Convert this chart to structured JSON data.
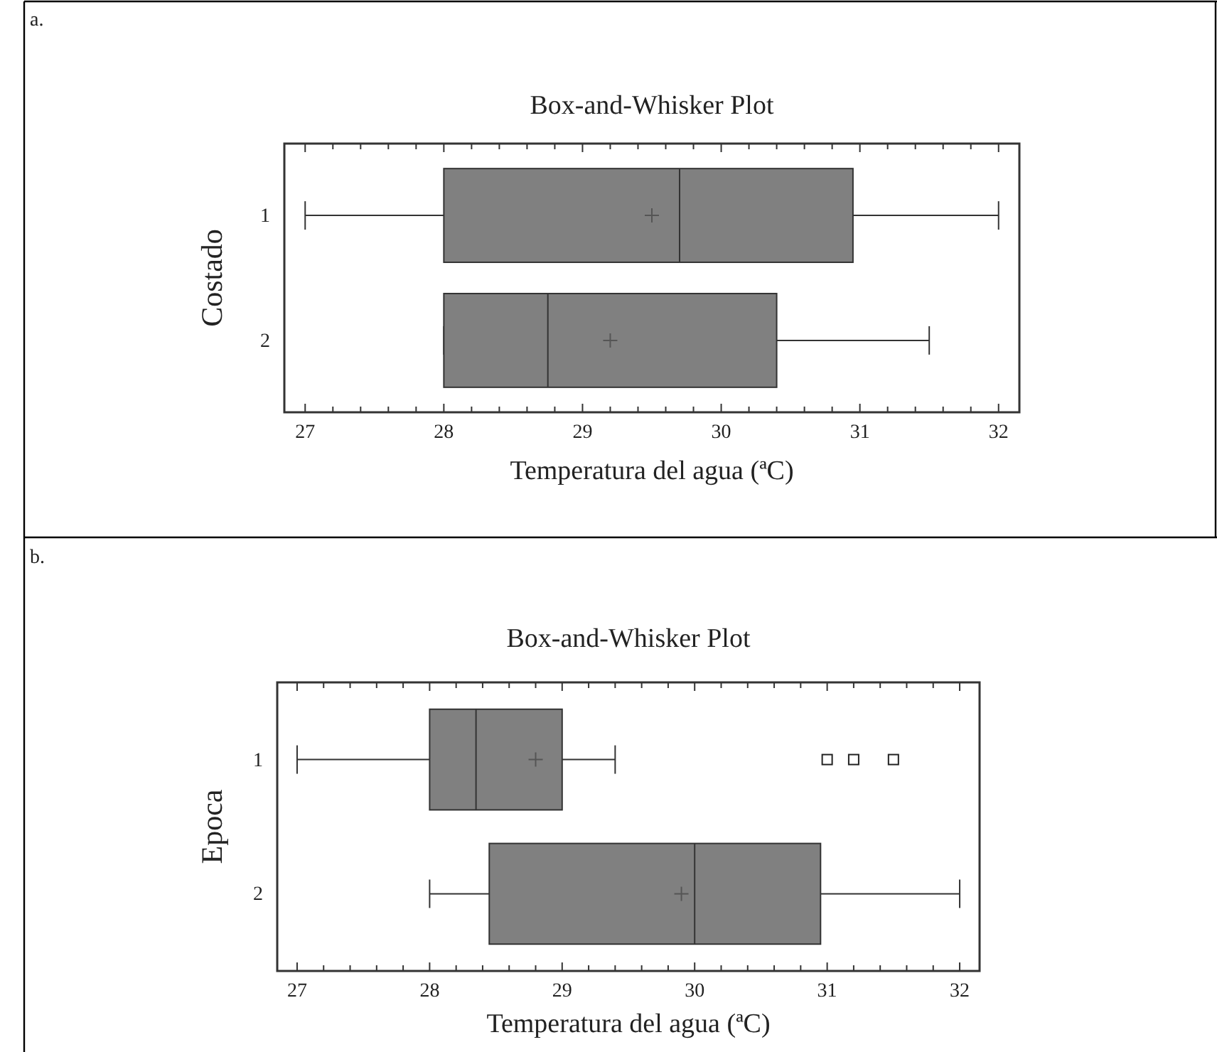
{
  "chart_data": [
    {
      "type": "box",
      "title": "Box-and-Whisker Plot",
      "xlabel": "Temperatura del agua (ªC)",
      "ylabel": "Costado",
      "annotations": [
        "a."
      ],
      "orientation": "horizontal",
      "categories": [
        "1",
        "2"
      ],
      "boxes": [
        {
          "low": 27,
          "q1": 28,
          "median": 29.7,
          "q3": 30.95,
          "high": 32,
          "mean": 29.5
        },
        {
          "low": 28,
          "q1": 28,
          "median": 28.75,
          "q3": 30.4,
          "high": 31.5,
          "mean": 29.2
        }
      ],
      "xlim": [
        26.85,
        32.15
      ],
      "xticks": [
        27,
        {
          "value": 27.2,
          "label": null
        },
        {
          "value": 27.4,
          "label": null
        },
        {
          "value": 27.6,
          "label": null
        },
        {
          "value": 27.8,
          "label": null
        },
        28,
        {
          "value": 28.2,
          "label": null
        },
        {
          "value": 28.4,
          "label": null
        },
        {
          "value": 28.6,
          "label": null
        },
        {
          "value": 28.8,
          "label": null
        },
        29,
        {
          "value": 29.2,
          "label": null
        },
        {
          "value": 29.4,
          "label": null
        },
        {
          "value": 29.6,
          "label": null
        },
        {
          "value": 29.8,
          "label": null
        },
        30,
        {
          "value": 30.2,
          "label": null
        },
        {
          "value": 30.4,
          "label": null
        },
        {
          "value": 30.6,
          "label": null
        },
        {
          "value": 30.8,
          "label": null
        },
        31,
        {
          "value": 31.2,
          "label": null
        },
        {
          "value": 31.4,
          "label": null
        },
        {
          "value": 31.6,
          "label": null
        },
        {
          "value": 31.8,
          "label": null
        },
        32
      ],
      "grid": false
    },
    {
      "type": "box",
      "title": "Box-and-Whisker Plot",
      "xlabel": "Temperatura del agua (ªC)",
      "ylabel": "Epoca",
      "annotations": [
        "b."
      ],
      "orientation": "horizontal",
      "categories": [
        "1",
        "2"
      ],
      "boxes": [
        {
          "low": 27,
          "q1": 28,
          "median": 28.35,
          "q3": 29,
          "high": 29.4,
          "mean": 28.8,
          "outliers": [
            31,
            31.2,
            31.5
          ]
        },
        {
          "low": 28,
          "q1": 28.45,
          "median": 30,
          "q3": 30.95,
          "high": 32,
          "mean": 29.9
        }
      ],
      "xlim": [
        26.85,
        32.15
      ],
      "xticks": [
        27,
        {
          "value": 27.2,
          "label": null
        },
        {
          "value": 27.4,
          "label": null
        },
        {
          "value": 27.6,
          "label": null
        },
        {
          "value": 27.8,
          "label": null
        },
        28,
        {
          "value": 28.2,
          "label": null
        },
        {
          "value": 28.4,
          "label": null
        },
        {
          "value": 28.6,
          "label": null
        },
        {
          "value": 28.8,
          "label": null
        },
        29,
        {
          "value": 29.2,
          "label": null
        },
        {
          "value": 29.4,
          "label": null
        },
        {
          "value": 29.6,
          "label": null
        },
        {
          "value": 29.8,
          "label": null
        },
        30,
        {
          "value": 30.2,
          "label": null
        },
        {
          "value": 30.4,
          "label": null
        },
        {
          "value": 30.6,
          "label": null
        },
        {
          "value": 30.8,
          "label": null
        },
        31,
        {
          "value": 31.2,
          "label": null
        },
        {
          "value": 31.4,
          "label": null
        },
        {
          "value": 31.6,
          "label": null
        },
        {
          "value": 31.8,
          "label": null
        },
        32
      ],
      "grid": false
    }
  ]
}
